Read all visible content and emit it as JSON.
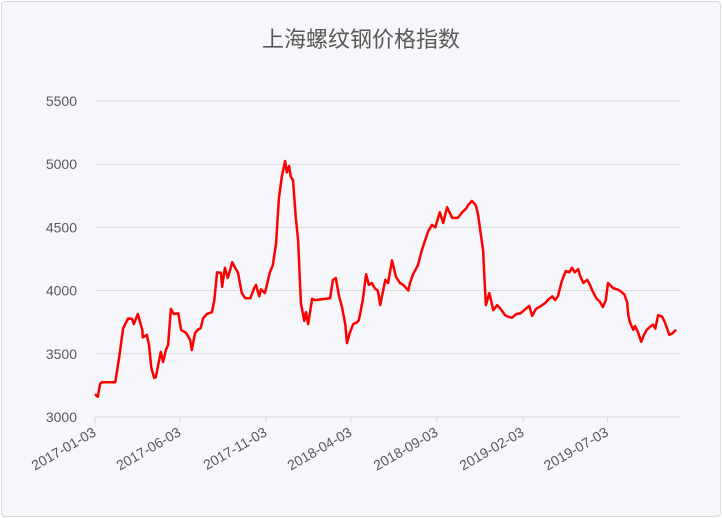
{
  "chart_data": {
    "type": "line",
    "title": "上海螺纹钢价格指数",
    "xlabel": "",
    "ylabel": "",
    "ylim": [
      3000,
      5500
    ],
    "yticks": [
      "3000",
      "3500",
      "4000",
      "4500",
      "5000",
      "5500"
    ],
    "xticks": [
      "2017-01-03",
      "2017-06-03",
      "2017-11-03",
      "2018-04-03",
      "2018-09-03",
      "2019-02-03",
      "2019-07-03"
    ],
    "xlim": [
      "2017-01-03",
      "2019-11-10"
    ],
    "grid": "horizontal",
    "legend": "none",
    "line_color": "#ff0000",
    "series": [
      {
        "points": [
          [
            "2017-01-03",
            3180
          ],
          [
            "2017-01-08",
            3160
          ],
          [
            "2017-01-12",
            3260
          ],
          [
            "2017-01-15",
            3275
          ],
          [
            "2017-02-08",
            3275
          ],
          [
            "2017-02-15",
            3475
          ],
          [
            "2017-02-22",
            3700
          ],
          [
            "2017-02-27",
            3745
          ],
          [
            "2017-03-03",
            3780
          ],
          [
            "2017-03-10",
            3775
          ],
          [
            "2017-03-13",
            3735
          ],
          [
            "2017-03-20",
            3815
          ],
          [
            "2017-03-28",
            3690
          ],
          [
            "2017-03-29",
            3630
          ],
          [
            "2017-04-05",
            3650
          ],
          [
            "2017-04-09",
            3570
          ],
          [
            "2017-04-13",
            3390
          ],
          [
            "2017-04-18",
            3310
          ],
          [
            "2017-04-21",
            3315
          ],
          [
            "2017-04-30",
            3515
          ],
          [
            "2017-05-04",
            3435
          ],
          [
            "2017-05-09",
            3530
          ],
          [
            "2017-05-13",
            3570
          ],
          [
            "2017-05-18",
            3855
          ],
          [
            "2017-05-23",
            3815
          ],
          [
            "2017-05-31",
            3820
          ],
          [
            "2017-06-05",
            3690
          ],
          [
            "2017-06-14",
            3665
          ],
          [
            "2017-06-21",
            3610
          ],
          [
            "2017-06-24",
            3530
          ],
          [
            "2017-06-30",
            3665
          ],
          [
            "2017-07-05",
            3690
          ],
          [
            "2017-07-10",
            3705
          ],
          [
            "2017-07-14",
            3780
          ],
          [
            "2017-07-21",
            3815
          ],
          [
            "2017-07-30",
            3830
          ],
          [
            "2017-08-03",
            3925
          ],
          [
            "2017-08-08",
            4145
          ],
          [
            "2017-08-15",
            4140
          ],
          [
            "2017-08-17",
            4030
          ],
          [
            "2017-08-22",
            4180
          ],
          [
            "2017-08-27",
            4100
          ],
          [
            "2017-09-04",
            4225
          ],
          [
            "2017-09-09",
            4180
          ],
          [
            "2017-09-14",
            4145
          ],
          [
            "2017-09-21",
            3980
          ],
          [
            "2017-09-27",
            3940
          ],
          [
            "2017-10-06",
            3940
          ],
          [
            "2017-10-13",
            4020
          ],
          [
            "2017-10-16",
            4045
          ],
          [
            "2017-10-22",
            3955
          ],
          [
            "2017-10-25",
            4010
          ],
          [
            "2017-11-01",
            3980
          ],
          [
            "2017-11-10",
            4145
          ],
          [
            "2017-11-15",
            4200
          ],
          [
            "2017-11-21",
            4375
          ],
          [
            "2017-11-26",
            4730
          ],
          [
            "2017-12-01",
            4900
          ],
          [
            "2017-12-07",
            5025
          ],
          [
            "2017-12-10",
            4935
          ],
          [
            "2017-12-14",
            4985
          ],
          [
            "2017-12-17",
            4900
          ],
          [
            "2017-12-21",
            4875
          ],
          [
            "2017-12-26",
            4575
          ],
          [
            "2017-12-30",
            4400
          ],
          [
            "2018-01-04",
            3900
          ],
          [
            "2018-01-10",
            3760
          ],
          [
            "2018-01-13",
            3830
          ],
          [
            "2018-01-17",
            3735
          ],
          [
            "2018-01-24",
            3935
          ],
          [
            "2018-01-29",
            3925
          ],
          [
            "2018-02-25",
            3940
          ],
          [
            "2018-03-02",
            4085
          ],
          [
            "2018-03-07",
            4100
          ],
          [
            "2018-03-13",
            3955
          ],
          [
            "2018-03-18",
            3875
          ],
          [
            "2018-03-24",
            3730
          ],
          [
            "2018-03-27",
            3585
          ],
          [
            "2018-04-01",
            3665
          ],
          [
            "2018-04-07",
            3735
          ],
          [
            "2018-04-14",
            3750
          ],
          [
            "2018-04-17",
            3765
          ],
          [
            "2018-04-24",
            3925
          ],
          [
            "2018-04-30",
            4130
          ],
          [
            "2018-05-05",
            4045
          ],
          [
            "2018-05-10",
            4060
          ],
          [
            "2018-05-16",
            4015
          ],
          [
            "2018-05-21",
            4000
          ],
          [
            "2018-05-25",
            3885
          ],
          [
            "2018-06-03",
            4085
          ],
          [
            "2018-06-08",
            4060
          ],
          [
            "2018-06-15",
            4240
          ],
          [
            "2018-06-22",
            4110
          ],
          [
            "2018-06-29",
            4060
          ],
          [
            "2018-07-05",
            4045
          ],
          [
            "2018-07-14",
            4000
          ],
          [
            "2018-07-17",
            4060
          ],
          [
            "2018-07-22",
            4125
          ],
          [
            "2018-07-31",
            4200
          ],
          [
            "2018-08-07",
            4320
          ],
          [
            "2018-08-18",
            4465
          ],
          [
            "2018-08-25",
            4520
          ],
          [
            "2018-08-31",
            4500
          ],
          [
            "2018-09-08",
            4620
          ],
          [
            "2018-09-14",
            4535
          ],
          [
            "2018-09-21",
            4660
          ],
          [
            "2018-09-30",
            4575
          ],
          [
            "2018-10-10",
            4575
          ],
          [
            "2018-10-18",
            4620
          ],
          [
            "2018-10-25",
            4650
          ],
          [
            "2018-10-28",
            4675
          ],
          [
            "2018-11-04",
            4710
          ],
          [
            "2018-11-11",
            4675
          ],
          [
            "2018-11-15",
            4600
          ],
          [
            "2018-11-20",
            4440
          ],
          [
            "2018-11-24",
            4320
          ],
          [
            "2018-11-26",
            4120
          ],
          [
            "2018-11-29",
            3885
          ],
          [
            "2018-12-05",
            3980
          ],
          [
            "2018-12-08",
            3925
          ],
          [
            "2018-12-12",
            3845
          ],
          [
            "2018-12-19",
            3885
          ],
          [
            "2018-12-26",
            3850
          ],
          [
            "2019-01-02",
            3805
          ],
          [
            "2019-01-07",
            3795
          ],
          [
            "2019-01-14",
            3785
          ],
          [
            "2019-01-22",
            3815
          ],
          [
            "2019-01-29",
            3820
          ],
          [
            "2019-02-05",
            3845
          ],
          [
            "2019-02-14",
            3880
          ],
          [
            "2019-02-19",
            3800
          ],
          [
            "2019-02-26",
            3855
          ],
          [
            "2019-03-07",
            3880
          ],
          [
            "2019-03-14",
            3900
          ],
          [
            "2019-03-19",
            3925
          ],
          [
            "2019-03-27",
            3955
          ],
          [
            "2019-04-01",
            3925
          ],
          [
            "2019-04-06",
            3955
          ],
          [
            "2019-04-12",
            4060
          ],
          [
            "2019-04-15",
            4100
          ],
          [
            "2019-04-20",
            4155
          ],
          [
            "2019-04-26",
            4145
          ],
          [
            "2019-05-01",
            4180
          ],
          [
            "2019-05-06",
            4145
          ],
          [
            "2019-05-12",
            4170
          ],
          [
            "2019-05-15",
            4120
          ],
          [
            "2019-05-21",
            4060
          ],
          [
            "2019-05-28",
            4085
          ],
          [
            "2019-06-02",
            4045
          ],
          [
            "2019-06-06",
            4000
          ],
          [
            "2019-06-13",
            3940
          ],
          [
            "2019-06-20",
            3910
          ],
          [
            "2019-06-25",
            3870
          ],
          [
            "2019-06-30",
            3925
          ],
          [
            "2019-07-04",
            4060
          ],
          [
            "2019-07-13",
            4020
          ],
          [
            "2019-07-20",
            4010
          ],
          [
            "2019-07-25",
            4000
          ],
          [
            "2019-08-02",
            3970
          ],
          [
            "2019-08-07",
            3910
          ],
          [
            "2019-08-09",
            3805
          ],
          [
            "2019-08-12",
            3750
          ],
          [
            "2019-08-18",
            3690
          ],
          [
            "2019-08-21",
            3720
          ],
          [
            "2019-08-26",
            3675
          ],
          [
            "2019-09-01",
            3595
          ],
          [
            "2019-09-06",
            3650
          ],
          [
            "2019-09-11",
            3690
          ],
          [
            "2019-09-17",
            3715
          ],
          [
            "2019-09-22",
            3730
          ],
          [
            "2019-09-26",
            3700
          ],
          [
            "2019-10-01",
            3805
          ],
          [
            "2019-10-08",
            3795
          ],
          [
            "2019-10-13",
            3750
          ],
          [
            "2019-10-17",
            3700
          ],
          [
            "2019-10-21",
            3650
          ],
          [
            "2019-10-26",
            3660
          ],
          [
            "2019-11-02",
            3690
          ]
        ]
      }
    ]
  }
}
